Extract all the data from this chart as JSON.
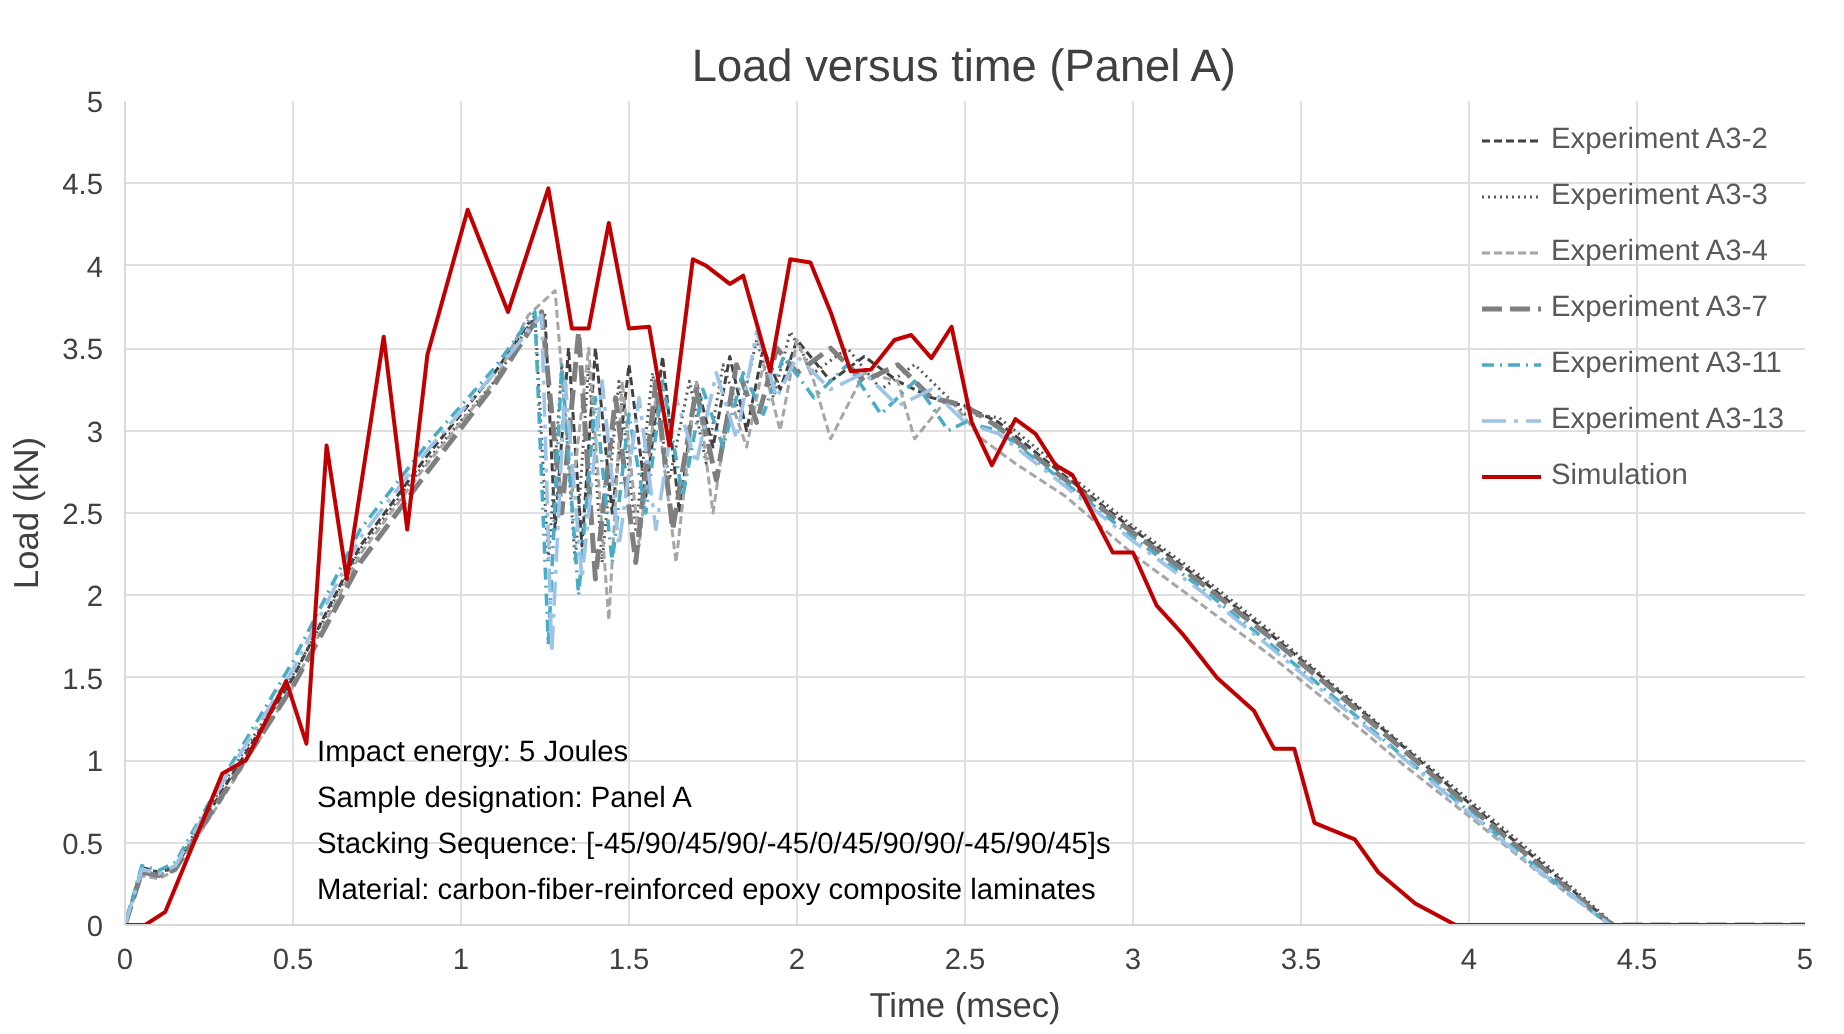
{
  "chart_data": {
    "type": "line",
    "title": "Load versus time (Panel A)",
    "xlabel": "Time (msec)",
    "ylabel": "Load (kN)",
    "xlim": [
      0,
      5
    ],
    "ylim": [
      0,
      5
    ],
    "xticks": [
      0,
      0.5,
      1,
      1.5,
      2,
      2.5,
      3,
      3.5,
      4,
      4.5,
      5
    ],
    "yticks": [
      0,
      0.5,
      1,
      1.5,
      2,
      2.5,
      3,
      3.5,
      4,
      4.5,
      5
    ],
    "grid": true,
    "legend": "top right",
    "marker": "none",
    "annotations": [
      "Impact energy: 5 Joules",
      "Sample designation: Panel A",
      "Stacking Sequence:  [-45/90/45/90/-45/0/45/90/90/-45/90/45]s",
      "Material:  carbon-fiber-reinforced  epoxy composite laminates"
    ],
    "series": [
      {
        "name": "Experiment A3-2",
        "color": "#404040",
        "line_style": "dashed",
        "x": [
          0,
          0.05,
          0.1,
          0.15,
          0.3,
          0.5,
          0.6,
          0.7,
          0.9,
          1.1,
          1.2,
          1.25,
          1.28,
          1.32,
          1.36,
          1.4,
          1.45,
          1.5,
          1.55,
          1.6,
          1.65,
          1.7,
          1.75,
          1.8,
          1.85,
          1.9,
          1.95,
          2.0,
          2.1,
          2.2,
          2.3,
          2.4,
          2.5,
          2.6,
          2.8,
          3.0,
          3.2,
          3.4,
          3.6,
          3.8,
          4.0,
          4.2,
          4.4,
          4.43,
          5
        ],
        "values": [
          0,
          0.35,
          0.32,
          0.35,
          0.85,
          1.5,
          1.9,
          2.3,
          2.85,
          3.35,
          3.65,
          3.7,
          2.4,
          3.5,
          2.3,
          3.5,
          2.5,
          3.4,
          2.6,
          3.45,
          2.5,
          3.3,
          2.9,
          3.45,
          3.0,
          3.5,
          3.25,
          3.55,
          3.3,
          3.45,
          3.3,
          3.2,
          3.15,
          3.05,
          2.72,
          2.4,
          2.1,
          1.78,
          1.44,
          1.09,
          0.74,
          0.4,
          0.05,
          0,
          0
        ]
      },
      {
        "name": "Experiment A3-3",
        "color": "#595959",
        "line_style": "dotted",
        "x": [
          0,
          0.05,
          0.1,
          0.15,
          0.3,
          0.5,
          0.6,
          0.7,
          0.9,
          1.1,
          1.22,
          1.26,
          1.3,
          1.34,
          1.38,
          1.42,
          1.47,
          1.52,
          1.57,
          1.62,
          1.68,
          1.73,
          1.78,
          1.83,
          1.88,
          1.93,
          1.98,
          2.05,
          2.15,
          2.25,
          2.35,
          2.45,
          2.5,
          2.6,
          2.8,
          3.0,
          3.2,
          3.4,
          3.6,
          3.8,
          4.0,
          4.2,
          4.4,
          4.43,
          5
        ],
        "values": [
          0,
          0.33,
          0.3,
          0.36,
          0.88,
          1.52,
          1.88,
          2.28,
          2.82,
          3.3,
          3.7,
          2.2,
          3.4,
          2.2,
          3.4,
          2.2,
          3.3,
          2.4,
          3.35,
          2.7,
          3.3,
          2.8,
          3.4,
          3.1,
          3.55,
          3.2,
          3.6,
          3.35,
          3.5,
          3.25,
          3.4,
          3.2,
          3.1,
          3.08,
          2.75,
          2.42,
          2.12,
          1.8,
          1.45,
          1.1,
          0.76,
          0.42,
          0.06,
          0,
          0
        ]
      },
      {
        "name": "Experiment A3-4",
        "color": "#a6a6a6",
        "line_style": "dashed",
        "x": [
          0,
          0.05,
          0.1,
          0.15,
          0.3,
          0.5,
          0.6,
          0.7,
          0.9,
          1.1,
          1.2,
          1.28,
          1.33,
          1.38,
          1.44,
          1.48,
          1.53,
          1.58,
          1.64,
          1.7,
          1.75,
          1.8,
          1.85,
          1.9,
          1.95,
          2.0,
          2.05,
          2.1,
          2.2,
          2.3,
          2.35,
          2.45,
          2.55,
          2.65,
          2.8,
          3.0,
          3.2,
          3.4,
          3.6,
          3.8,
          4.0,
          4.2,
          4.4,
          4.42,
          5
        ],
        "values": [
          0,
          0.3,
          0.28,
          0.33,
          0.8,
          1.45,
          1.85,
          2.25,
          2.8,
          3.3,
          3.7,
          3.85,
          2.6,
          3.5,
          1.85,
          3.3,
          2.3,
          3.2,
          2.2,
          3.3,
          2.5,
          3.2,
          2.9,
          3.4,
          3.0,
          3.55,
          3.3,
          2.95,
          3.35,
          3.3,
          2.95,
          3.2,
          2.95,
          2.8,
          2.6,
          2.25,
          1.95,
          1.65,
          1.32,
          0.98,
          0.66,
          0.33,
          0.03,
          0,
          0
        ]
      },
      {
        "name": "Experiment A3-7",
        "color": "#7f7f7f",
        "line_style": "longdash",
        "x": [
          0,
          0.05,
          0.1,
          0.15,
          0.3,
          0.5,
          0.6,
          0.7,
          0.9,
          1.1,
          1.24,
          1.3,
          1.35,
          1.4,
          1.46,
          1.52,
          1.58,
          1.63,
          1.7,
          1.76,
          1.82,
          1.88,
          1.94,
          2.0,
          2.1,
          2.2,
          2.3,
          2.4,
          2.5,
          2.6,
          2.8,
          3.0,
          3.2,
          3.4,
          3.6,
          3.8,
          4.0,
          4.2,
          4.4,
          4.43,
          5
        ],
        "values": [
          0,
          0.32,
          0.3,
          0.34,
          0.82,
          1.45,
          1.82,
          2.2,
          2.75,
          3.28,
          3.72,
          2.5,
          3.6,
          2.1,
          3.2,
          2.2,
          3.3,
          2.4,
          3.25,
          2.7,
          3.4,
          3.05,
          3.5,
          3.35,
          3.5,
          3.3,
          3.4,
          3.2,
          3.15,
          3.02,
          2.7,
          2.38,
          2.08,
          1.76,
          1.42,
          1.07,
          0.72,
          0.38,
          0.04,
          0,
          0
        ]
      },
      {
        "name": "Experiment A3-11",
        "color": "#4bacc6",
        "line_style": "dashdot",
        "x": [
          0,
          0.05,
          0.1,
          0.15,
          0.3,
          0.5,
          0.6,
          0.7,
          0.9,
          1.1,
          1.22,
          1.26,
          1.3,
          1.35,
          1.4,
          1.45,
          1.5,
          1.55,
          1.6,
          1.66,
          1.72,
          1.78,
          1.84,
          1.9,
          1.96,
          2.05,
          2.15,
          2.25,
          2.35,
          2.45,
          2.5,
          2.6,
          2.8,
          3.0,
          3.2,
          3.4,
          3.6,
          3.8,
          4.0,
          4.2,
          4.4,
          4.42,
          5
        ],
        "values": [
          0,
          0.36,
          0.33,
          0.38,
          0.92,
          1.6,
          2.0,
          2.4,
          2.92,
          3.38,
          3.72,
          1.7,
          3.4,
          2.0,
          3.2,
          2.2,
          3.1,
          2.5,
          3.3,
          2.6,
          3.25,
          2.9,
          3.35,
          3.1,
          3.45,
          3.2,
          3.4,
          3.1,
          3.3,
          3.0,
          3.05,
          3.0,
          2.68,
          2.35,
          2.05,
          1.72,
          1.38,
          1.03,
          0.69,
          0.35,
          0.03,
          0,
          0
        ]
      },
      {
        "name": "Experiment A3-13",
        "color": "#9dc3e6",
        "line_style": "longdashdot",
        "x": [
          0,
          0.05,
          0.1,
          0.15,
          0.3,
          0.5,
          0.6,
          0.7,
          0.9,
          1.1,
          1.24,
          1.27,
          1.31,
          1.36,
          1.42,
          1.47,
          1.53,
          1.58,
          1.64,
          1.7,
          1.76,
          1.82,
          1.88,
          1.94,
          2.0,
          2.1,
          2.2,
          2.3,
          2.4,
          2.5,
          2.6,
          2.8,
          3.0,
          3.2,
          3.4,
          3.6,
          3.8,
          4.0,
          4.2,
          4.4,
          4.42,
          5
        ],
        "values": [
          0,
          0.34,
          0.31,
          0.36,
          0.9,
          1.55,
          1.95,
          2.35,
          2.88,
          3.35,
          3.7,
          1.65,
          3.3,
          2.1,
          3.3,
          2.3,
          3.2,
          2.4,
          3.2,
          2.8,
          3.35,
          2.95,
          3.6,
          3.2,
          3.45,
          3.25,
          3.35,
          3.15,
          3.25,
          3.05,
          2.98,
          2.66,
          2.33,
          2.03,
          1.7,
          1.36,
          1.02,
          0.68,
          0.34,
          0.03,
          0,
          0
        ]
      },
      {
        "name": "Simulation",
        "color": "#c00000",
        "line_style": "solid",
        "x": [
          0,
          0.06,
          0.12,
          0.29,
          0.36,
          0.48,
          0.54,
          0.6,
          0.66,
          0.77,
          0.84,
          0.9,
          1.02,
          1.14,
          1.26,
          1.33,
          1.38,
          1.44,
          1.5,
          1.56,
          1.62,
          1.69,
          1.73,
          1.8,
          1.84,
          1.92,
          1.98,
          2.04,
          2.1,
          2.16,
          2.22,
          2.29,
          2.34,
          2.4,
          2.46,
          2.52,
          2.58,
          2.65,
          2.71,
          2.77,
          2.82,
          2.94,
          3.0,
          3.07,
          3.15,
          3.25,
          3.36,
          3.42,
          3.48,
          3.54,
          3.66,
          3.73,
          3.84,
          3.96,
          5
        ],
        "values": [
          0,
          0,
          0.08,
          0.92,
          1.0,
          1.48,
          1.1,
          2.91,
          2.1,
          3.57,
          2.4,
          3.46,
          4.34,
          3.72,
          4.47,
          3.62,
          3.62,
          4.26,
          3.62,
          3.63,
          2.91,
          4.04,
          4.0,
          3.89,
          3.94,
          3.36,
          4.04,
          4.02,
          3.72,
          3.36,
          3.37,
          3.55,
          3.58,
          3.44,
          3.63,
          3.05,
          2.79,
          3.07,
          2.98,
          2.79,
          2.73,
          2.26,
          2.26,
          1.94,
          1.76,
          1.5,
          1.3,
          1.07,
          1.07,
          0.62,
          0.52,
          0.32,
          0.13,
          0,
          0
        ]
      }
    ]
  }
}
